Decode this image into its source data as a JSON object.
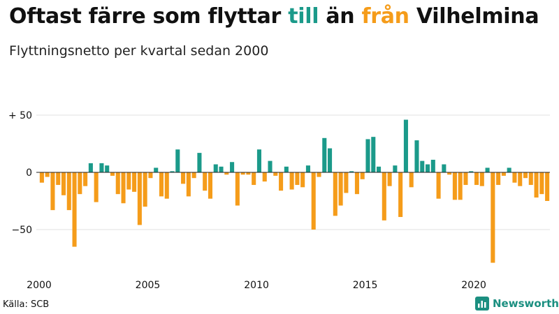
{
  "title": {
    "part1": "Oftast färre som flyttar ",
    "positive_word": "till",
    "part2": " än ",
    "negative_word": "från",
    "part3": " Vilhelmina"
  },
  "subtitle": "Flyttningsnetto per kvartal sedan 2000",
  "source": "Källa: SCB",
  "brand": "Newsworthy",
  "colors": {
    "positive": "#1b9a8a",
    "negative": "#f59c1a",
    "axis": "#222222",
    "grid": "#e0e0e0",
    "brand": "#1b8f80"
  },
  "chart_data": {
    "type": "bar",
    "title": "Oftast färre som flyttar till än från Vilhelmina",
    "subtitle": "Flyttningsnetto per kvartal sedan 2000",
    "x_start": {
      "year": 2000,
      "quarter": 1
    },
    "x_ticks": [
      2000,
      2005,
      2010,
      2015,
      2020
    ],
    "y_ticks": [
      {
        "value": 50,
        "label": "+ 50"
      },
      {
        "value": 0,
        "label": "0"
      },
      {
        "value": -50,
        "label": "−50"
      }
    ],
    "ylim": [
      -82,
      50
    ],
    "grid": true,
    "values": [
      -9,
      -4,
      -33,
      -11,
      -20,
      -33,
      -65,
      -19,
      -12,
      8,
      -26,
      8,
      6,
      -3,
      -19,
      -27,
      -15,
      -17,
      -46,
      -30,
      -5,
      4,
      -21,
      -23,
      1,
      20,
      -10,
      -21,
      -5,
      17,
      -16,
      -23,
      7,
      5,
      -2,
      9,
      -29,
      -2,
      -2,
      -11,
      20,
      -8,
      10,
      -3,
      -16,
      5,
      -15,
      -11,
      -13,
      6,
      -50,
      -4,
      30,
      21,
      -38,
      -29,
      -18,
      1,
      -19,
      -6,
      29,
      31,
      5,
      -42,
      -12,
      6,
      -39,
      46,
      -13,
      28,
      10,
      7,
      11,
      -23,
      7,
      -2,
      -24,
      -24,
      -11,
      1,
      -11,
      -12,
      4,
      -79,
      -11,
      -3,
      4,
      -9,
      -12,
      -5,
      -11,
      -22,
      -19,
      -25
    ]
  }
}
